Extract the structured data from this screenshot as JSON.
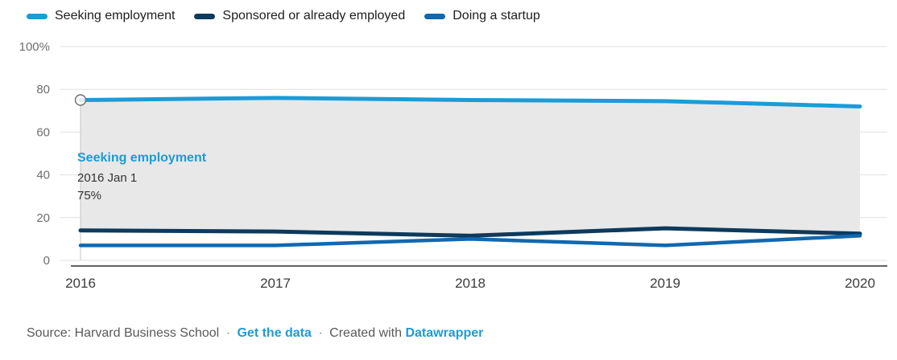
{
  "legend": {
    "items": [
      {
        "label": "Seeking employment"
      },
      {
        "label": "Sponsored or already employed"
      },
      {
        "label": "Doing a startup"
      }
    ]
  },
  "tooltip": {
    "title": "Seeking employment",
    "date": "2016 Jan 1",
    "value": "75%"
  },
  "footer": {
    "source": "Source: Harvard Business School",
    "separator": "·",
    "link_data": "Get the data",
    "created_with": "Created with",
    "link_brand": "Datawrapper"
  },
  "colors": {
    "accent": "#1d9bd7",
    "navy": "#0d3a5d",
    "blue": "#1168af",
    "band": "#e8e8e8",
    "grid": "#e0e0e0",
    "axis": "#2f2f2f"
  },
  "chart_data": {
    "type": "line",
    "title": "",
    "x": [
      "2016",
      "2017",
      "2018",
      "2019",
      "2020"
    ],
    "ylim": [
      0,
      100
    ],
    "grid": true,
    "legend_position": "top",
    "yticks": [
      {
        "value": 100,
        "label": "100%"
      },
      {
        "value": 80,
        "label": "80"
      },
      {
        "value": 60,
        "label": "60"
      },
      {
        "value": 40,
        "label": "40"
      },
      {
        "value": 20,
        "label": "20"
      },
      {
        "value": 0,
        "label": "0"
      }
    ],
    "series": [
      {
        "name": "Seeking employment",
        "color": "#1d9bd7",
        "width": 5,
        "values": [
          75,
          76,
          75,
          74.5,
          72
        ]
      },
      {
        "name": "Sponsored or already employed",
        "color": "#0d3a5d",
        "width": 5,
        "values": [
          14,
          13.5,
          11.5,
          15,
          12.5
        ]
      },
      {
        "name": "Doing a startup",
        "color": "#1168af",
        "width": 4.5,
        "values": [
          7,
          7,
          10,
          7,
          11.5
        ]
      }
    ],
    "band_between": [
      "Seeking employment",
      "Sponsored or already employed"
    ],
    "annotation_point": {
      "series": "Seeking employment",
      "x": "2016",
      "value": 75
    }
  }
}
